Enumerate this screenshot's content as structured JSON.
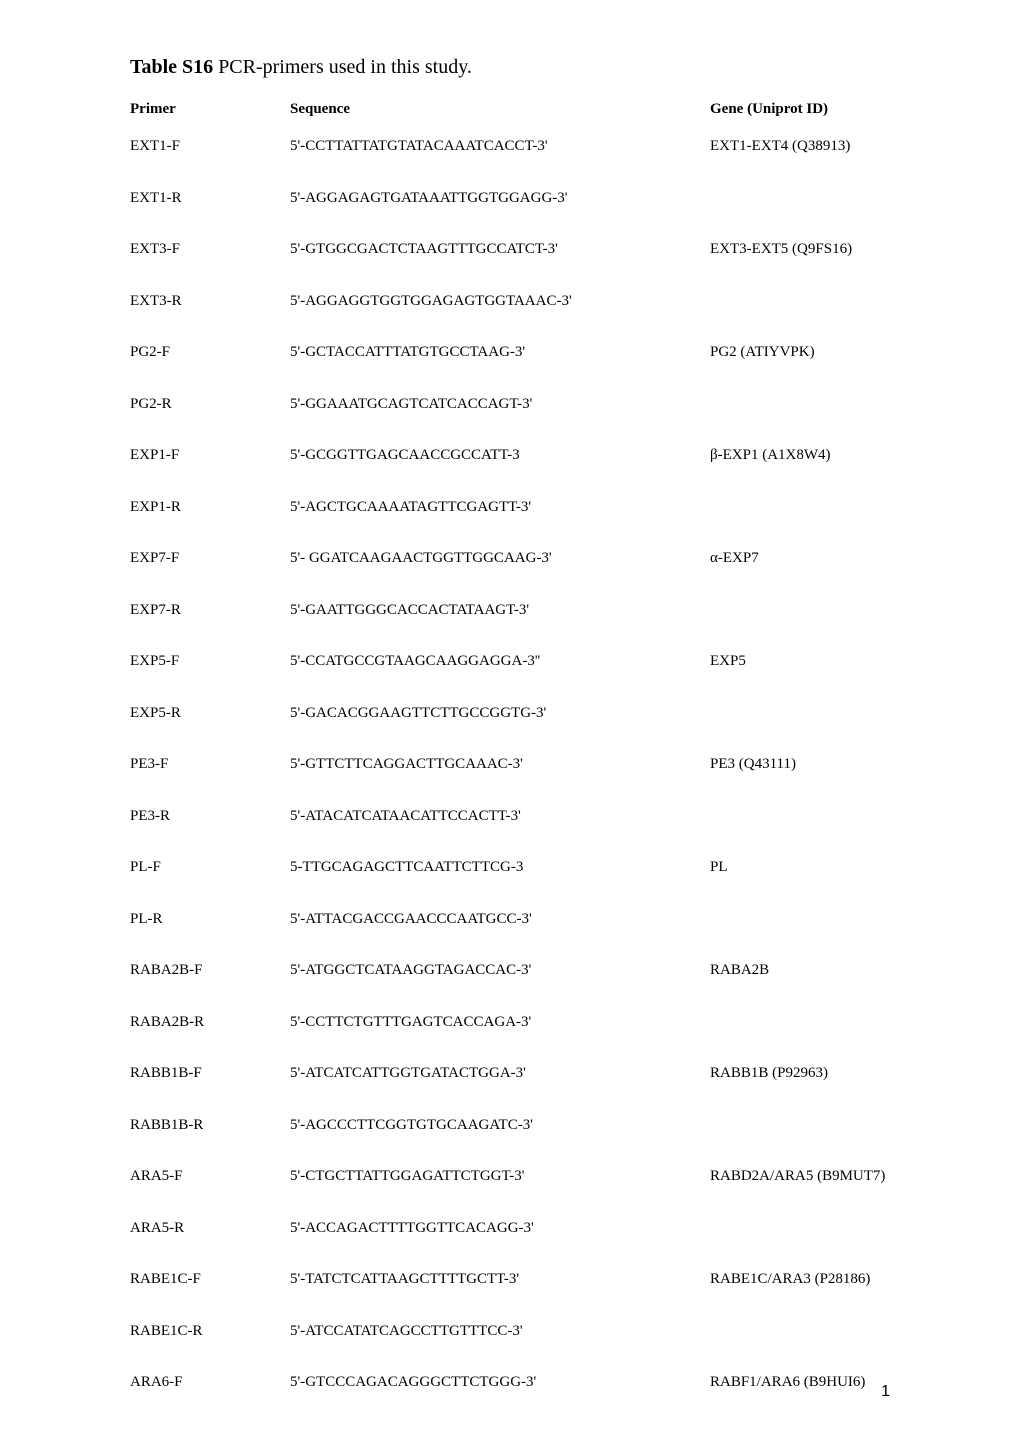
{
  "title_bold": "Table S16",
  "title_rest": " PCR-primers used in this study.",
  "headers": {
    "primer": "Primer",
    "sequence": "Sequence",
    "gene": "Gene (Uniprot ID)"
  },
  "rows": [
    {
      "primer": "EXT1-F",
      "sequence": "5'-CCTTATTATGTATACAAATCACCT-3'",
      "gene": "EXT1-EXT4 (Q38913)"
    },
    {
      "primer": "EXT1-R",
      "sequence": "5'-AGGAGAGTGATAAATTGGTGGAGG-3'",
      "gene": ""
    },
    {
      "primer": "EXT3-F",
      "sequence": "5'-GTGGCGACTCTAAGTTTGCCATCT-3'",
      "gene": "EXT3-EXT5 (Q9FS16)"
    },
    {
      "primer": "EXT3-R",
      "sequence": "5'-AGGAGGTGGTGGAGAGTGGTAAAC-3'",
      "gene": ""
    },
    {
      "primer": "PG2-F",
      "sequence": "5'-GCTACCATTTATGTGCCTAAG-3'",
      "gene": "PG2 (ATIYVPK)"
    },
    {
      "primer": "PG2-R",
      "sequence": "5'-GGAAATGCAGTCATCACCAGT-3'",
      "gene": ""
    },
    {
      "primer": "EXP1-F",
      "sequence": "5'-GCGGTTGAGCAACCGCCATT-3",
      "gene": "β-EXP1 (A1X8W4)"
    },
    {
      "primer": "EXP1-R",
      "sequence": "5'-AGCTGCAAAATAGTTCGAGTT-3'",
      "gene": ""
    },
    {
      "primer": "EXP7-F",
      "sequence": "5'- GGATCAAGAACTGGTTGGCAAG-3'",
      "gene": "α-EXP7"
    },
    {
      "primer": "EXP7-R",
      "sequence": "5'-GAATTGGGCACCACTATAAGT-3'",
      "gene": ""
    },
    {
      "primer": "EXP5-F",
      "sequence": "5'-CCATGCCGTAAGCAAGGAGGA-3''",
      "gene": "EXP5"
    },
    {
      "primer": "EXP5-R",
      "sequence": "5'-GACACGGAAGTTCTTGCCGGTG-3'",
      "gene": ""
    },
    {
      "primer": "PE3-F",
      "sequence": "5'-GTTCTTCAGGACTTGCAAAC-3'",
      "gene": "PE3 (Q43111)"
    },
    {
      "primer": "PE3-R",
      "sequence": "5'-ATACATCATAACATTCCACTT-3'",
      "gene": ""
    },
    {
      "primer": "PL-F",
      "sequence": "5-TTGCAGAGCTTCAATTCTTCG-3",
      "gene": "PL"
    },
    {
      "primer": "PL-R",
      "sequence": "5'-ATTACGACCGAACCCAATGCC-3'",
      "gene": ""
    },
    {
      "primer": "RABA2B-F",
      "sequence": "5'-ATGGCTCATAAGGTAGACCAC-3'",
      "gene": "RABA2B"
    },
    {
      "primer": "RABA2B-R",
      "sequence": "5'-CCTTCTGTTTGAGTCACCAGA-3'",
      "gene": ""
    },
    {
      "primer": "RABB1B-F",
      "sequence": "5'-ATCATCATTGGTGATACTGGA-3'",
      "gene": "RABB1B (P92963)"
    },
    {
      "primer": "RABB1B-R",
      "sequence": "5'-AGCCCTTCGGTGTGCAAGATC-3'",
      "gene": ""
    },
    {
      "primer": "ARA5-F",
      "sequence": "5'-CTGCTTATTGGAGATTCTGGT-3'",
      "gene": "RABD2A/ARA5 (B9MUT7)"
    },
    {
      "primer": "ARA5-R",
      "sequence": "5'-ACCAGACTTTTGGTTCACAGG-3'",
      "gene": ""
    },
    {
      "primer": "RABE1C-F",
      "sequence": "5'-TATCTCATTAAGCTTTTGCTT-3'",
      "gene": "RABE1C/ARA3 (P28186)"
    },
    {
      "primer": "RABE1C-R",
      "sequence": "5'-ATCCATATCAGCCTTGTTTCC-3'",
      "gene": ""
    },
    {
      "primer": "ARA6-F",
      "sequence": "5'-GTCCCAGACAGGGCTTCTGGG-3'",
      "gene": "RABF1/ARA6 (B9HUI6)"
    }
  ],
  "page_number": "1"
}
